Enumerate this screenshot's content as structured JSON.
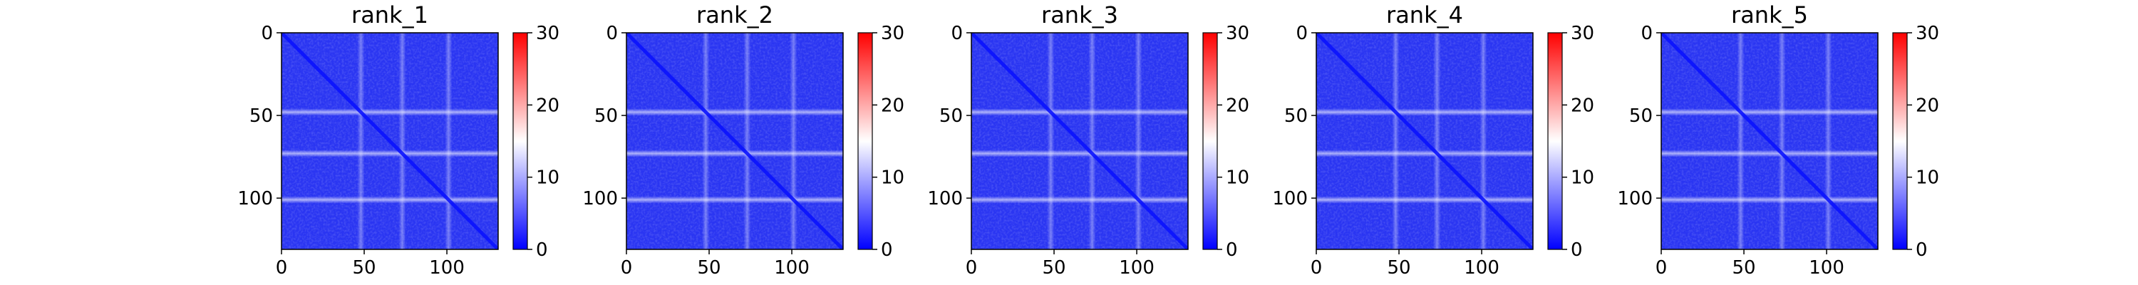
{
  "chart_data": [
    {
      "type": "heatmap",
      "title": "rank_1",
      "xticks": [
        0,
        50,
        100
      ],
      "yticks": [
        0,
        50,
        100
      ],
      "xlim": [
        0,
        131
      ],
      "ylim": [
        131,
        0
      ],
      "colorbar": {
        "ticks": [
          0,
          10,
          20,
          30
        ],
        "range": [
          0,
          30
        ],
        "colormap": [
          "#0000ff",
          "#ffffff",
          "#ff0000"
        ]
      },
      "bright_bands": [
        48,
        73,
        101
      ],
      "diagonal": true
    },
    {
      "type": "heatmap",
      "title": "rank_2",
      "xticks": [
        0,
        50,
        100
      ],
      "yticks": [
        0,
        50,
        100
      ],
      "xlim": [
        0,
        131
      ],
      "ylim": [
        131,
        0
      ],
      "colorbar": {
        "ticks": [
          0,
          10,
          20,
          30
        ],
        "range": [
          0,
          30
        ],
        "colormap": [
          "#0000ff",
          "#ffffff",
          "#ff0000"
        ]
      },
      "bright_bands": [
        48,
        73,
        101
      ],
      "diagonal": true
    },
    {
      "type": "heatmap",
      "title": "rank_3",
      "xticks": [
        0,
        50,
        100
      ],
      "yticks": [
        0,
        50,
        100
      ],
      "xlim": [
        0,
        131
      ],
      "ylim": [
        131,
        0
      ],
      "colorbar": {
        "ticks": [
          0,
          10,
          20,
          30
        ],
        "range": [
          0,
          30
        ],
        "colormap": [
          "#0000ff",
          "#ffffff",
          "#ff0000"
        ]
      },
      "bright_bands": [
        48,
        73,
        101
      ],
      "diagonal": true
    },
    {
      "type": "heatmap",
      "title": "rank_4",
      "xticks": [
        0,
        50,
        100
      ],
      "yticks": [
        0,
        50,
        100
      ],
      "xlim": [
        0,
        131
      ],
      "ylim": [
        131,
        0
      ],
      "colorbar": {
        "ticks": [
          0,
          10,
          20,
          30
        ],
        "range": [
          0,
          30
        ],
        "colormap": [
          "#0000ff",
          "#ffffff",
          "#ff0000"
        ]
      },
      "bright_bands": [
        48,
        73,
        101
      ],
      "diagonal": true
    },
    {
      "type": "heatmap",
      "title": "rank_5",
      "xticks": [
        0,
        50,
        100
      ],
      "yticks": [
        0,
        50,
        100
      ],
      "xlim": [
        0,
        131
      ],
      "ylim": [
        131,
        0
      ],
      "colorbar": {
        "ticks": [
          0,
          10,
          20,
          30
        ],
        "range": [
          0,
          30
        ],
        "colormap": [
          "#0000ff",
          "#ffffff",
          "#ff0000"
        ]
      },
      "bright_bands": [
        48,
        73,
        101
      ],
      "diagonal": true
    }
  ]
}
